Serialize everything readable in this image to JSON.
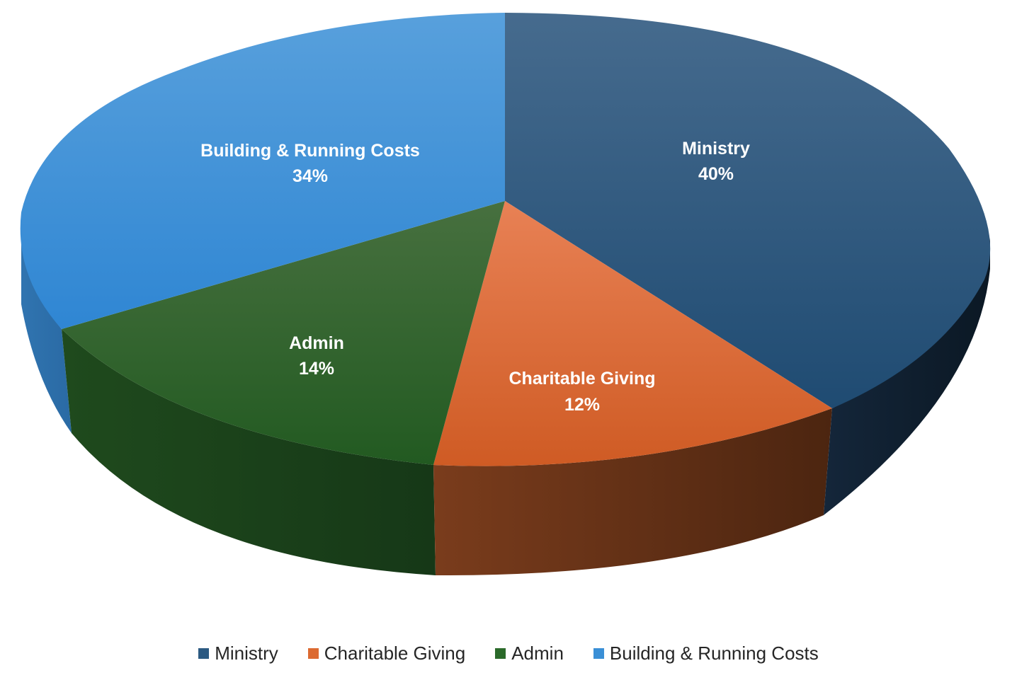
{
  "chart_data": {
    "type": "pie",
    "style": "3d-exploded-perspective",
    "slices": [
      {
        "label": "Ministry",
        "value": 40,
        "value_label": "40%",
        "color": "#2c5a82"
      },
      {
        "label": "Charitable Giving",
        "value": 12,
        "value_label": "12%",
        "color": "#dc6a31"
      },
      {
        "label": "Admin",
        "value": 14,
        "value_label": "14%",
        "color": "#2b6a2a"
      },
      {
        "label": "Building & Running Costs",
        "value": 34,
        "value_label": "34%",
        "color": "#3a8fd6"
      }
    ],
    "legend": {
      "position": "bottom",
      "entries": [
        "Ministry",
        "Charitable Giving",
        "Admin",
        "Building & Running Costs"
      ]
    }
  }
}
